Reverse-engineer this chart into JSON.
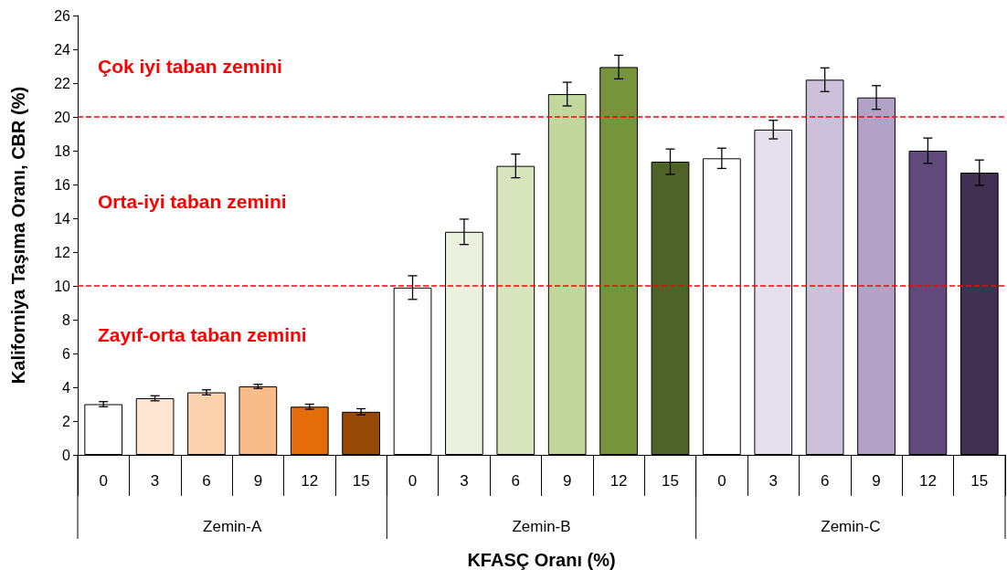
{
  "chart_data": {
    "type": "bar",
    "xlabel": "KFASÇ Oranı (%)",
    "ylabel": "Kaliforniya Taşıma Oranı, CBR (%)",
    "categories": [
      "0",
      "3",
      "6",
      "9",
      "12",
      "15",
      "0",
      "3",
      "6",
      "9",
      "12",
      "15",
      "0",
      "3",
      "6",
      "9",
      "12",
      "15"
    ],
    "values": [
      3.0,
      3.35,
      3.7,
      4.05,
      2.85,
      2.55,
      9.9,
      13.2,
      17.1,
      21.35,
      22.95,
      17.35,
      17.55,
      19.25,
      22.2,
      21.15,
      18.0,
      16.7
    ],
    "errors": [
      0.15,
      0.15,
      0.15,
      0.12,
      0.15,
      0.18,
      0.7,
      0.75,
      0.7,
      0.7,
      0.7,
      0.75,
      0.6,
      0.55,
      0.7,
      0.7,
      0.75,
      0.75
    ],
    "colors": [
      "#ffffff",
      "#fde5d2",
      "#fbd1ae",
      "#f8bb8a",
      "#e46c0a",
      "#984807",
      "#ffffff",
      "#ebf1de",
      "#d7e4bd",
      "#c3d69b",
      "#77933c",
      "#4f6228",
      "#ffffff",
      "#e6e0ec",
      "#ccc1da",
      "#b3a2c7",
      "#604a7b",
      "#403152"
    ],
    "ylim": [
      0,
      26
    ],
    "yticks": [
      0,
      2,
      4,
      6,
      8,
      10,
      12,
      14,
      16,
      18,
      20,
      22,
      24,
      26
    ],
    "grid": false,
    "ref_lines": [
      {
        "axis": "y",
        "value": 20,
        "color": "#ff0000",
        "line_style": "dashed"
      },
      {
        "axis": "y",
        "value": 10,
        "color": "#ff0000",
        "line_style": "dashed"
      }
    ],
    "annotations": [
      "Çok iyi taban zemini",
      "Orta-iyi taban zemini",
      "Zayıf-orta taban zemini",
      "Zemin-A",
      "Zemin-B",
      "Zemin-C"
    ]
  }
}
